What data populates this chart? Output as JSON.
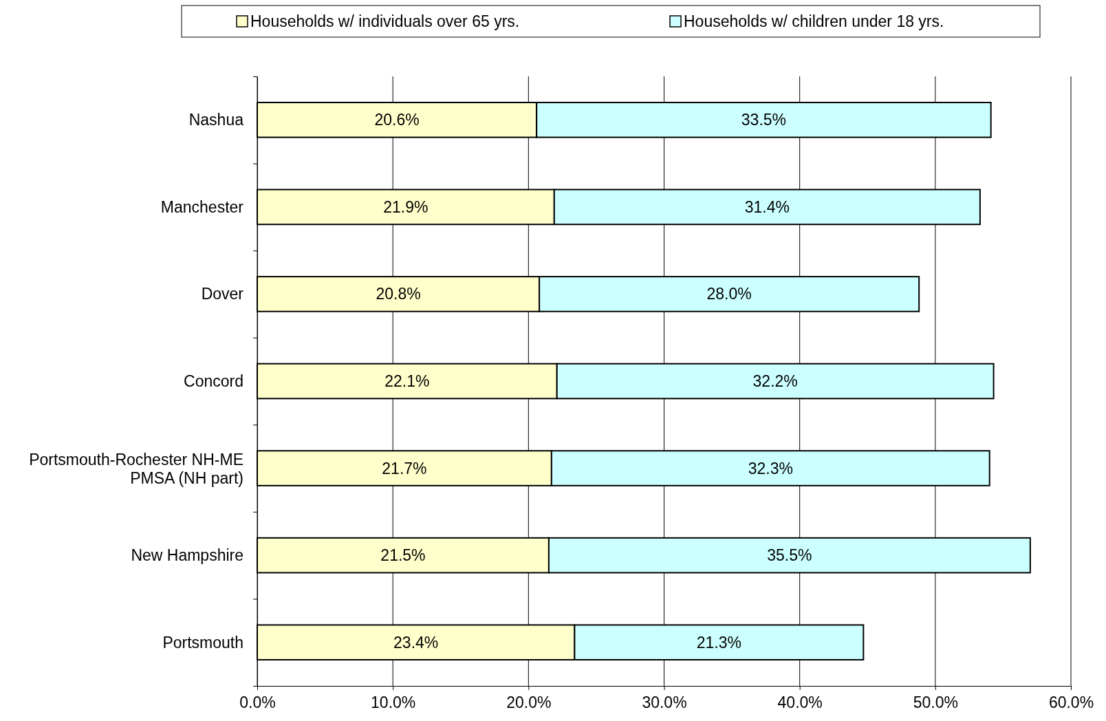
{
  "chart_data": {
    "type": "bar",
    "orientation": "horizontal",
    "stacked": true,
    "categories": [
      "Nashua",
      "Manchester",
      "Dover",
      "Concord",
      "Portsmouth-Rochester NH-ME PMSA (NH part)",
      "New Hampshire",
      "Portsmouth"
    ],
    "series": [
      {
        "name": "Households w/ individuals over 65 yrs.",
        "color": "#ffffcc",
        "values": [
          20.6,
          21.9,
          20.8,
          22.1,
          21.7,
          21.5,
          23.4
        ],
        "value_labels": [
          "20.6%",
          "21.9%",
          "20.8%",
          "22.1%",
          "21.7%",
          "21.5%",
          "23.4%"
        ]
      },
      {
        "name": "Households w/ children under 18 yrs.",
        "color": "#ccffff",
        "values": [
          33.5,
          31.4,
          28.0,
          32.2,
          32.3,
          35.5,
          21.3
        ],
        "value_labels": [
          "33.5%",
          "31.4%",
          "28.0%",
          "32.2%",
          "32.3%",
          "35.5%",
          "21.3%"
        ]
      }
    ],
    "xlim": [
      0,
      60
    ],
    "xticks": [
      {
        "value": 0,
        "label": "0.0%"
      },
      {
        "value": 10,
        "label": "10.0%"
      },
      {
        "value": 20,
        "label": "20.0%"
      },
      {
        "value": 30,
        "label": "30.0%"
      },
      {
        "value": 40,
        "label": "40.0%"
      },
      {
        "value": 50,
        "label": "50.0%"
      },
      {
        "value": 60,
        "label": "60.0%"
      }
    ],
    "grid": "x",
    "legend": "top"
  }
}
